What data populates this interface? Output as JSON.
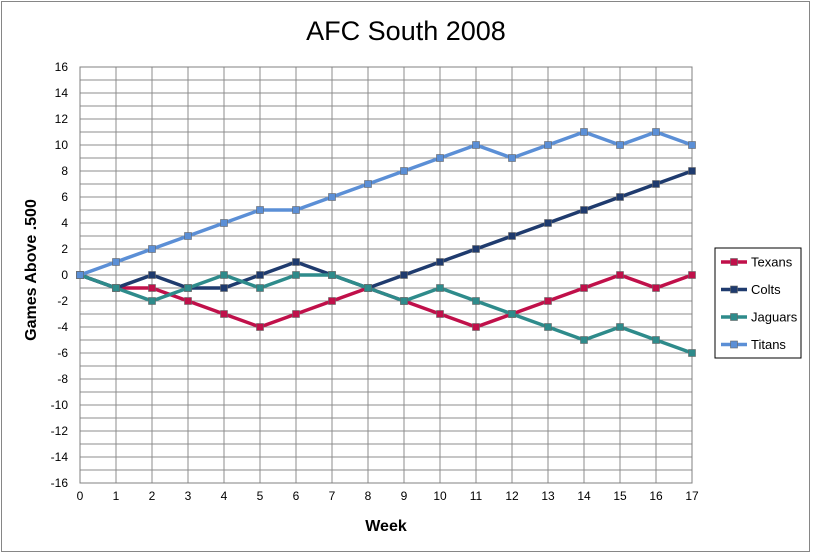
{
  "chart_data": {
    "type": "line",
    "title": "AFC South 2008",
    "xlabel": "Week",
    "ylabel": "Games Above .500",
    "x": [
      0,
      1,
      2,
      3,
      4,
      5,
      6,
      7,
      8,
      9,
      10,
      11,
      12,
      13,
      14,
      15,
      16,
      17
    ],
    "xlim": [
      0,
      17
    ],
    "ylim": [
      -16,
      16
    ],
    "y_ticks": [
      16,
      14,
      12,
      10,
      8,
      6,
      4,
      2,
      0,
      -2,
      -4,
      -6,
      -8,
      -10,
      -12,
      -14,
      -16
    ],
    "grid": true,
    "legend_position": "right",
    "series": [
      {
        "name": "Texans",
        "color": "#c0104a",
        "values": [
          0,
          -1,
          -1,
          -2,
          -3,
          -4,
          -3,
          -2,
          -1,
          -2,
          -3,
          -4,
          -3,
          -2,
          -1,
          0,
          -1,
          0
        ]
      },
      {
        "name": "Colts",
        "color": "#1f3b6e",
        "values": [
          0,
          -1,
          0,
          -1,
          -1,
          0,
          1,
          0,
          -1,
          0,
          1,
          2,
          3,
          4,
          5,
          6,
          7,
          8
        ]
      },
      {
        "name": "Jaguars",
        "color": "#2e8b8b",
        "values": [
          0,
          -1,
          -2,
          -1,
          0,
          -1,
          0,
          0,
          -1,
          -2,
          -1,
          -2,
          -3,
          -4,
          -5,
          -4,
          -5,
          -6
        ]
      },
      {
        "name": "Titans",
        "color": "#5b8fd6",
        "values": [
          0,
          1,
          2,
          3,
          4,
          5,
          5,
          6,
          7,
          8,
          9,
          10,
          9,
          10,
          11,
          10,
          11,
          10
        ]
      }
    ]
  }
}
